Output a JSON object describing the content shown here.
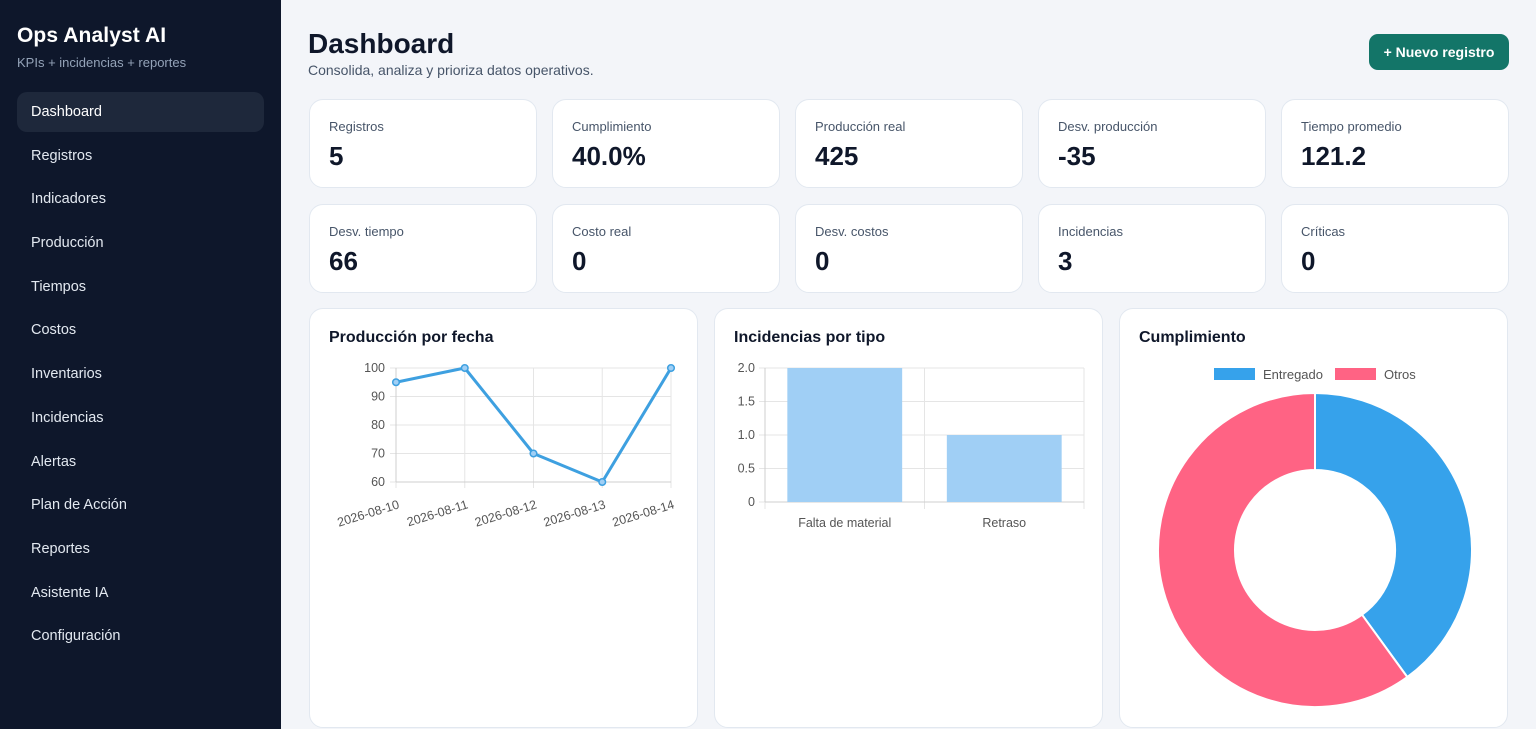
{
  "sidebar": {
    "brand_title": "Ops Analyst AI",
    "brand_subtitle": "KPIs + incidencias + reportes",
    "items": [
      {
        "label": "Dashboard",
        "active": true
      },
      {
        "label": "Registros"
      },
      {
        "label": "Indicadores"
      },
      {
        "label": "Producción"
      },
      {
        "label": "Tiempos"
      },
      {
        "label": "Costos"
      },
      {
        "label": "Inventarios"
      },
      {
        "label": "Incidencias"
      },
      {
        "label": "Alertas"
      },
      {
        "label": "Plan de Acción"
      },
      {
        "label": "Reportes"
      },
      {
        "label": "Asistente IA"
      },
      {
        "label": "Configuración"
      }
    ]
  },
  "header": {
    "title": "Dashboard",
    "subtitle": "Consolida, analiza y prioriza datos operativos.",
    "new_button": "+ Nuevo registro"
  },
  "kpis": [
    {
      "label": "Registros",
      "value": "5"
    },
    {
      "label": "Cumplimiento",
      "value": "40.0%"
    },
    {
      "label": "Producción real",
      "value": "425"
    },
    {
      "label": "Desv. producción",
      "value": "-35"
    },
    {
      "label": "Tiempo promedio",
      "value": "121.2"
    },
    {
      "label": "Desv. tiempo",
      "value": "66"
    },
    {
      "label": "Costo real",
      "value": "0"
    },
    {
      "label": "Desv. costos",
      "value": "0"
    },
    {
      "label": "Incidencias",
      "value": "3"
    },
    {
      "label": "Críticas",
      "value": "0"
    }
  ],
  "colors": {
    "sidebar_bg": "#0e172b",
    "accent_button": "#137568",
    "line_series": "#3ea0e0",
    "bar_fill": "#a0cff5",
    "donut_blue": "#36a2eb",
    "donut_pink": "#ff6384"
  },
  "chart_data": [
    {
      "type": "line",
      "title": "Producción por fecha",
      "x": [
        "2026-08-10",
        "2026-08-11",
        "2026-08-12",
        "2026-08-13",
        "2026-08-14"
      ],
      "values": [
        95,
        100,
        70,
        60,
        100
      ],
      "ylim": [
        60,
        100
      ],
      "yticks": [
        "100",
        "90",
        "80",
        "70",
        "60"
      ],
      "grid": true,
      "legend": false
    },
    {
      "type": "bar",
      "title": "Incidencias por tipo",
      "categories": [
        "Falta de material",
        "Retraso"
      ],
      "values": [
        2,
        1
      ],
      "ylim": [
        0,
        2
      ],
      "yticks": [
        "2.0",
        "1.5",
        "1.0",
        "0.5",
        "0"
      ],
      "grid": true,
      "legend": false
    },
    {
      "type": "pie",
      "title": "Cumplimiento",
      "labels": [
        "Entregado",
        "Otros"
      ],
      "values": [
        40,
        60
      ],
      "legend": "top"
    }
  ]
}
